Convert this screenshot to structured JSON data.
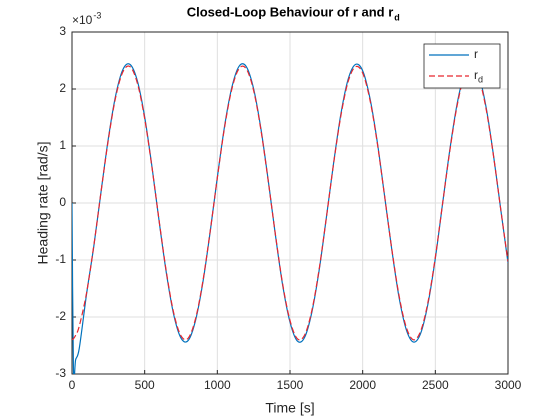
{
  "chart_data": {
    "type": "line",
    "title": "Closed-Loop Behaviour of r and r",
    "title_subscript": "d",
    "xlabel": "Time [s]",
    "ylabel": "Heading rate [rad/s]",
    "y_multiplier": "×10",
    "y_exponent": "-3",
    "x": [
      0,
      10,
      25,
      50,
      100,
      150,
      200,
      250,
      300,
      350,
      400,
      450,
      500,
      550,
      600,
      650,
      700,
      750,
      800,
      850,
      900,
      950,
      1000,
      1050,
      1100,
      1150,
      1200,
      1250,
      1300,
      1350,
      1400,
      1450,
      1500,
      1550,
      1600,
      1650,
      1700,
      1750,
      1800,
      1850,
      1900,
      1950,
      2000,
      2050,
      2100,
      2150,
      2200,
      2250,
      2300,
      2350,
      2400,
      2450,
      2500,
      2550,
      2600,
      2650,
      2700,
      2750,
      2800,
      2850,
      2900,
      2950,
      3000
    ],
    "series": [
      {
        "name": "r",
        "color": "#0072bd",
        "dashed": false,
        "values": [
          0,
          -2.95,
          -2.75,
          -2.55,
          -1.6,
          -0.76,
          0.2,
          1.13,
          1.88,
          2.34,
          2.43,
          2.14,
          1.51,
          0.64,
          -0.33,
          -1.24,
          -1.96,
          -2.37,
          -2.41,
          -2.06,
          -1.4,
          -0.52,
          0.45,
          1.35,
          2.03,
          2.4,
          2.39,
          2.0,
          1.3,
          0.4,
          -0.57,
          -1.45,
          -2.09,
          -2.42,
          -2.36,
          -1.92,
          -1.19,
          -0.26,
          0.7,
          1.56,
          2.17,
          2.43,
          2.32,
          1.84,
          1.08,
          0.14,
          -0.81,
          -1.65,
          -2.22,
          -2.44,
          -2.28,
          -1.76,
          -0.97,
          -0.01,
          0.94,
          1.74,
          2.27,
          2.44,
          2.23,
          1.67,
          0.84,
          -0.11,
          -1.05
        ]
      },
      {
        "name": "r",
        "subscript": "d",
        "color": "#e8262e",
        "dashed": true,
        "values": [
          -2.4,
          -2.38,
          -2.32,
          -2.16,
          -1.58,
          -0.75,
          0.2,
          1.11,
          1.85,
          2.3,
          2.39,
          2.1,
          1.48,
          0.63,
          -0.32,
          -1.22,
          -1.93,
          -2.33,
          -2.37,
          -2.03,
          -1.38,
          -0.51,
          0.44,
          1.33,
          2.0,
          2.36,
          2.35,
          1.97,
          1.28,
          0.39,
          -0.56,
          -1.43,
          -2.06,
          -2.38,
          -2.32,
          -1.89,
          -1.17,
          -0.26,
          0.69,
          1.53,
          2.13,
          2.39,
          2.28,
          1.81,
          1.06,
          0.14,
          -0.8,
          -1.62,
          -2.18,
          -2.4,
          -2.24,
          -1.73,
          -0.95,
          -0.01,
          0.92,
          1.71,
          2.23,
          2.4,
          2.19,
          1.64,
          0.83,
          -0.11,
          -1.03
        ]
      }
    ],
    "xlim": [
      0,
      3000
    ],
    "xticks": [
      0,
      500,
      1000,
      1500,
      2000,
      2500,
      3000
    ],
    "ylim": [
      -3,
      3
    ],
    "yticks": [
      -3,
      -2,
      -1,
      0,
      1,
      2,
      3
    ],
    "grid": true,
    "legend": "northeast"
  }
}
